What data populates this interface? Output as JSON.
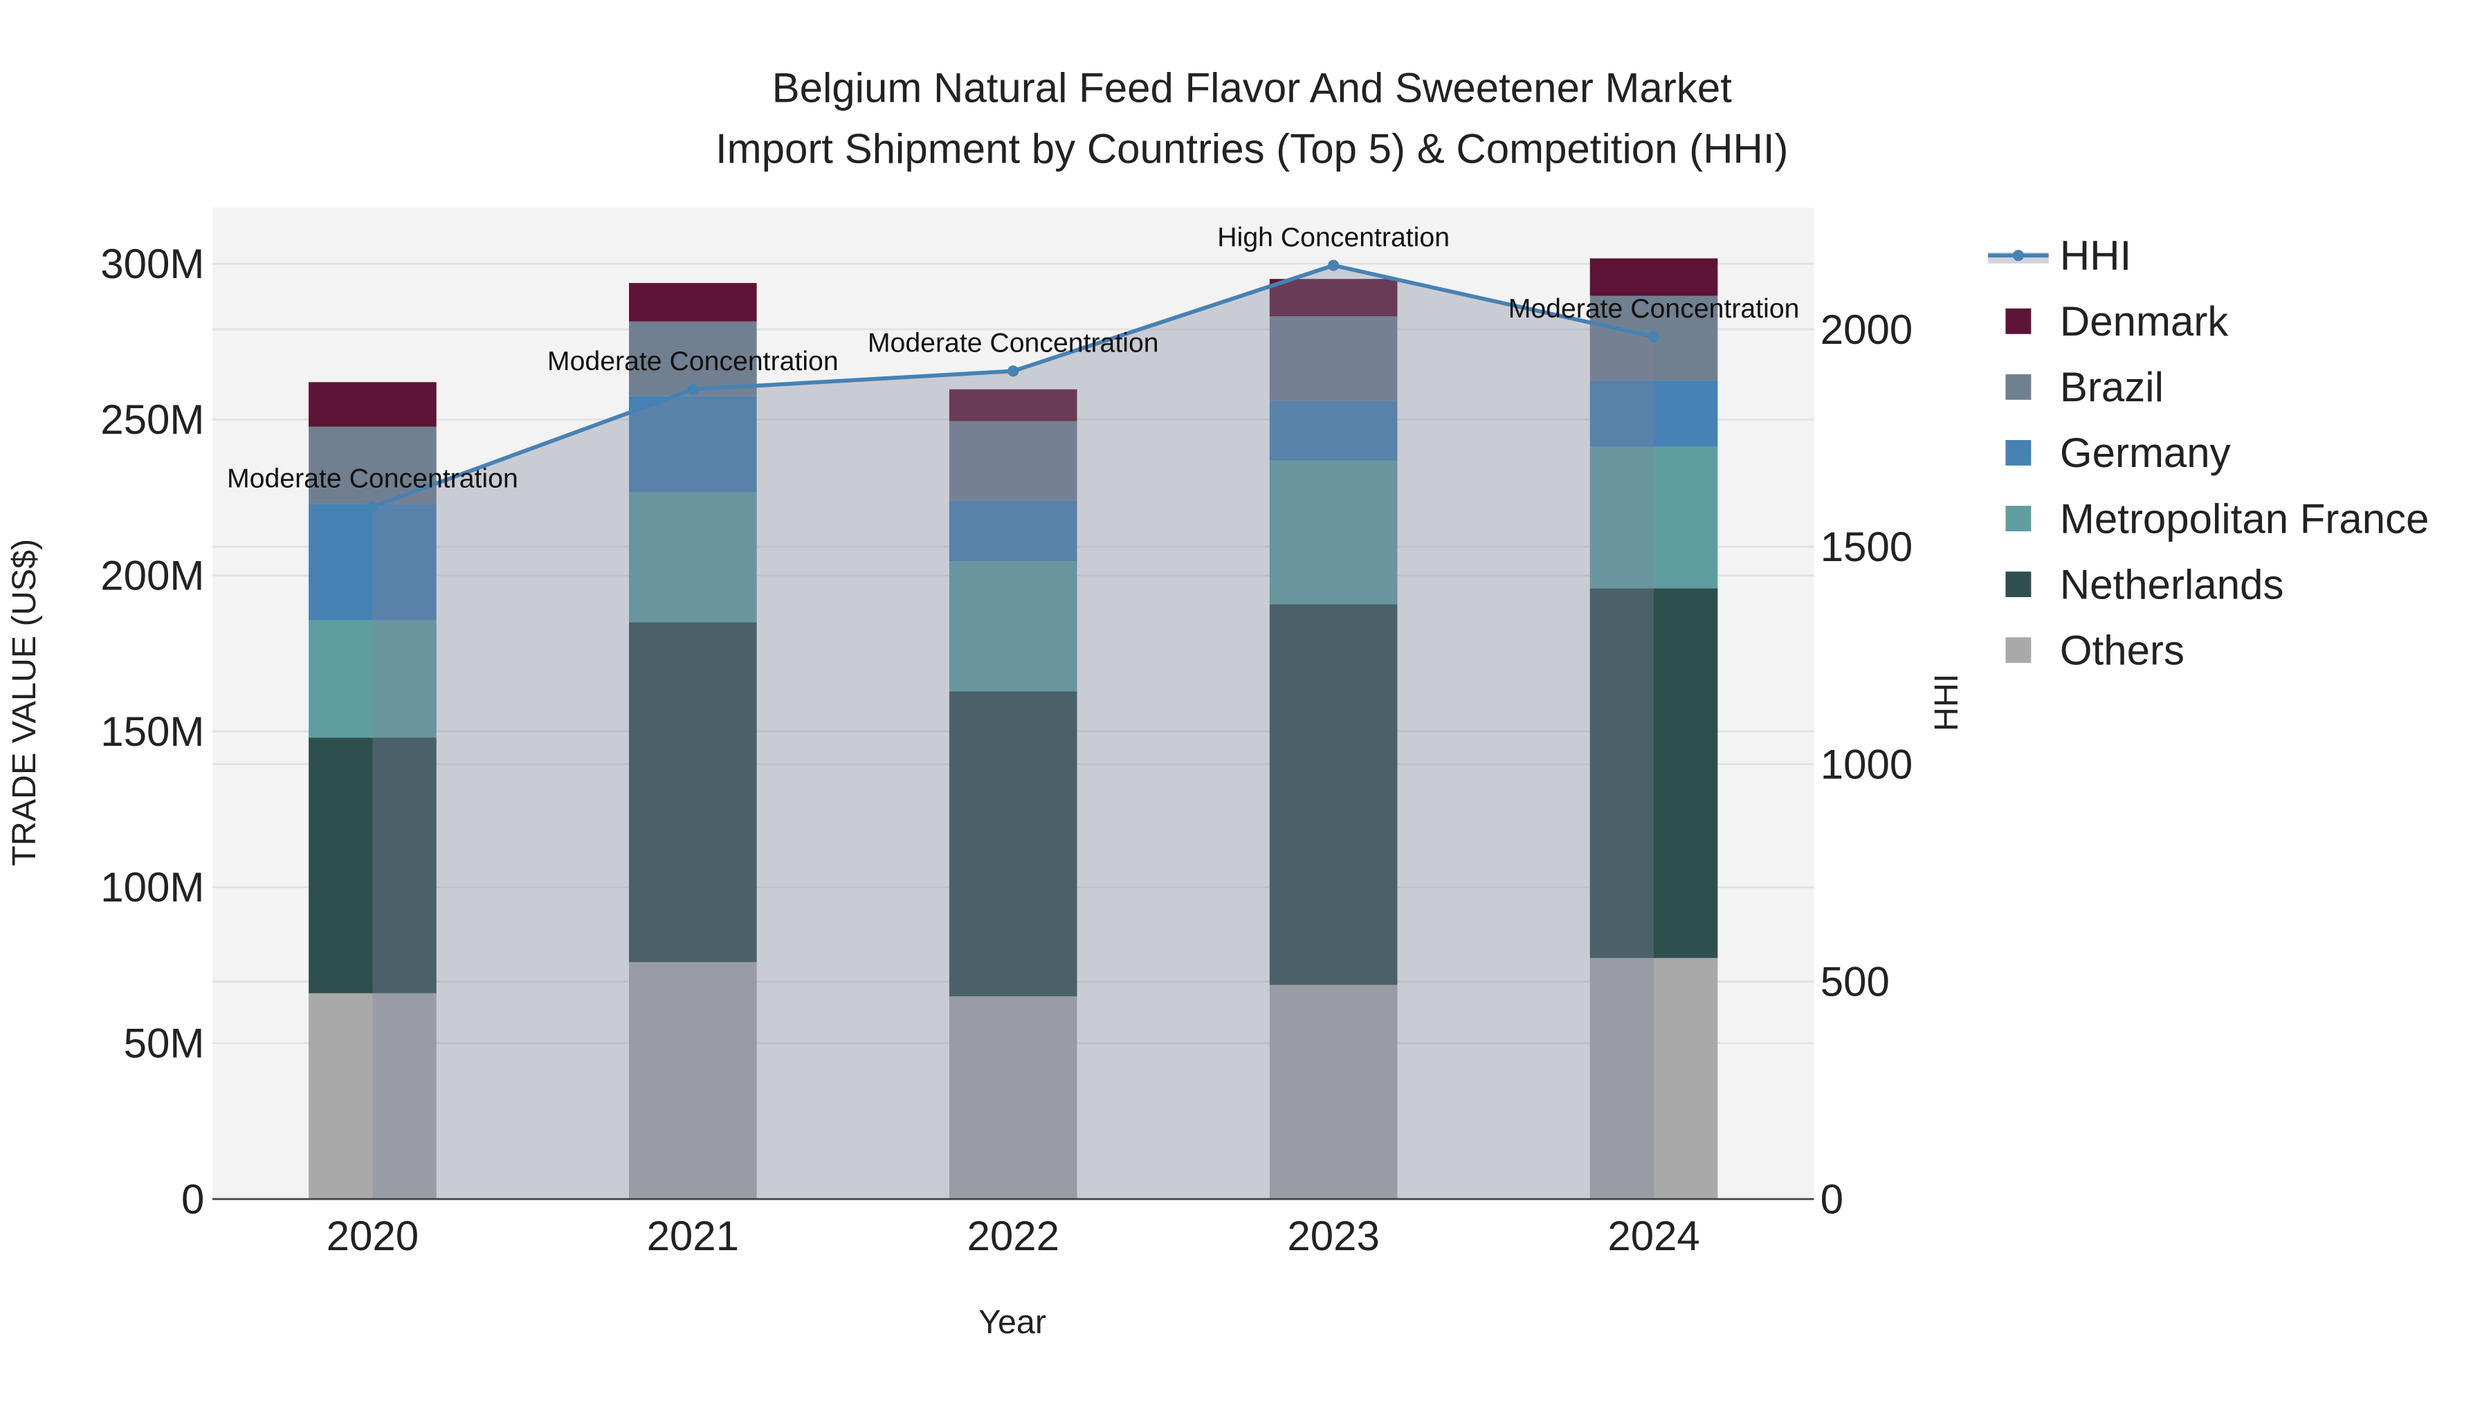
{
  "chart_data": {
    "type": "bar",
    "title": "Belgium Natural Feed Flavor And Sweetener Market",
    "subtitle": "Import Shipment by Countries (Top 5) & Competition (HHI)",
    "xlabel": "Year",
    "ylabel": "TRADE VALUE (US$)",
    "y2label": "HHI",
    "categories": [
      "2020",
      "2021",
      "2022",
      "2023",
      "2024"
    ],
    "ylim": [
      0,
      318
    ],
    "y_unit": "M",
    "yticks": [
      0,
      50,
      100,
      150,
      200,
      250,
      300
    ],
    "ytick_labels": [
      "0",
      "50M",
      "100M",
      "150M",
      "200M",
      "250M",
      "300M"
    ],
    "y2lim": [
      0,
      2280
    ],
    "y2ticks": [
      0,
      500,
      1000,
      1500,
      2000
    ],
    "y2tick_labels": [
      "0",
      "500",
      "1000",
      "1500",
      "2000"
    ],
    "stacked": true,
    "series": [
      {
        "name": "Others",
        "color": "#a9a9a9",
        "values": [
          66,
          76,
          65,
          68.7,
          77.3
        ]
      },
      {
        "name": "Netherlands",
        "color": "#2f4f4f",
        "values": [
          82,
          109,
          97.8,
          122.1,
          118.6
        ]
      },
      {
        "name": "Metropolitan France",
        "color": "#5f9ea0",
        "values": [
          37.6,
          41.8,
          41.8,
          46.1,
          45.4
        ]
      },
      {
        "name": "Germany",
        "color": "#4682b4",
        "values": [
          37.4,
          30.8,
          19.4,
          19.1,
          21.2
        ]
      },
      {
        "name": "Brazil",
        "color": "#708090",
        "values": [
          24.7,
          23.9,
          25.5,
          27.1,
          27.2
        ]
      },
      {
        "name": "Denmark",
        "color": "#5e1434",
        "values": [
          14.3,
          12.3,
          10.2,
          12.0,
          12.0
        ]
      }
    ],
    "line": {
      "name": "HHI",
      "color": "#4682b4",
      "axis": "right",
      "values": [
        1592,
        1862,
        1904,
        2147,
        1983
      ],
      "annotations": [
        "Moderate Concentration",
        "Moderate Concentration",
        "Moderate Concentration",
        "High Concentration",
        "Moderate Concentration"
      ]
    },
    "legend": {
      "placement": "right",
      "entries": [
        "HHI",
        "Denmark",
        "Brazil",
        "Germany",
        "Metropolitan France",
        "Netherlands",
        "Others"
      ]
    },
    "grid": true
  }
}
